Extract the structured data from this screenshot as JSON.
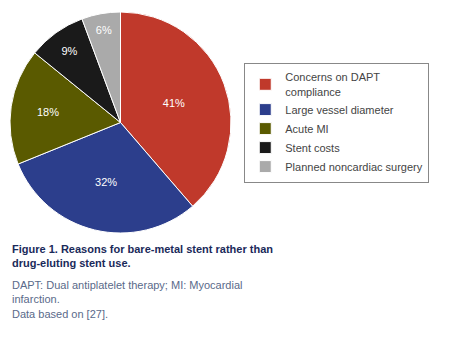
{
  "chart_data": {
    "type": "pie",
    "title": "Figure 1. Reasons for bare-metal stent rather than\ndrug-eluting stent use.",
    "annotations": [
      "DAPT: Dual antiplatelet therapy; MI: Myocardial\ninfarction.\nData based on [27]."
    ],
    "categories": [
      "Concerns on DAPT\ncompliance",
      "Large vessel diameter",
      "Acute MI",
      "Stent costs",
      "Planned noncardiac surgery"
    ],
    "values": [
      41,
      32,
      18,
      9,
      6
    ],
    "value_labels": [
      "41%",
      "32%",
      "18%",
      "9%",
      "6%"
    ],
    "data_labels": true,
    "colors": [
      "#c0392b",
      "#2c3e8c",
      "#5a5a00",
      "#1a1a1a",
      "#aaaaaa"
    ]
  }
}
